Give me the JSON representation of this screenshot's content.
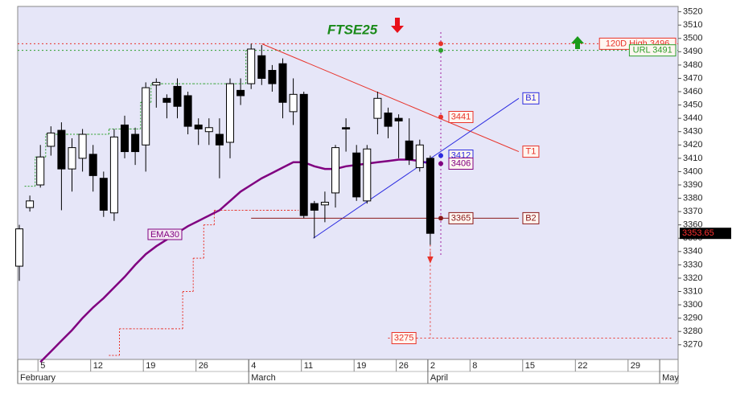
{
  "chart_data": {
    "type": "candlestick",
    "title": "FTSE25",
    "categories": [
      null,
      null,
      "5",
      null,
      null,
      null,
      null,
      "12",
      null,
      null,
      null,
      null,
      "19",
      null,
      null,
      null,
      null,
      "26",
      null,
      null,
      null,
      null,
      "4",
      null,
      null,
      null,
      null,
      "11",
      null,
      null,
      null,
      null,
      "19",
      null,
      null,
      null,
      "26",
      null,
      null,
      "2",
      null,
      null,
      null,
      "8",
      null,
      null,
      null,
      null,
      "15",
      null,
      null,
      null,
      null,
      "22",
      null,
      null,
      null,
      null,
      "29",
      null,
      null,
      null,
      null
    ],
    "months": [
      "February",
      null,
      null,
      null,
      null,
      null,
      null,
      null,
      null,
      null,
      null,
      null,
      null,
      null,
      null,
      null,
      null,
      null,
      null,
      null,
      null,
      null,
      "March",
      null,
      null,
      null,
      null,
      null,
      null,
      null,
      null,
      null,
      null,
      null,
      null,
      null,
      null,
      null,
      null,
      "April",
      null,
      null,
      null,
      null,
      null,
      null,
      null,
      null,
      null,
      null,
      null,
      null,
      null,
      null,
      null,
      null,
      null,
      null,
      null,
      null,
      null,
      "May",
      null
    ],
    "open": [
      3329,
      3373,
      3390,
      3419,
      3431,
      3402,
      3410,
      3413,
      3395,
      3369,
      3435,
      3428,
      3420,
      3465,
      3455,
      3464,
      3457,
      3435,
      3430,
      3428,
      3422,
      3461,
      3466,
      3487,
      3476,
      3481,
      3445,
      3458,
      3376,
      3375,
      3384,
      3433,
      3414,
      3378,
      3440,
      3444,
      3440,
      3423,
      3403,
      3410,
      null,
      null,
      null,
      null,
      null,
      null,
      null,
      null,
      null,
      null,
      null,
      null,
      null,
      null,
      null,
      null,
      null,
      null,
      null,
      null,
      null,
      null,
      null
    ],
    "high": [
      3360,
      3382,
      3420,
      3434,
      3437,
      3425,
      3432,
      3420,
      3400,
      3432,
      3442,
      3433,
      3467,
      3470,
      3458,
      3470,
      3460,
      3440,
      3440,
      3440,
      3470,
      3470,
      3496,
      3495,
      3480,
      3485,
      3470,
      3460,
      3378,
      3385,
      3420,
      3440,
      3420,
      3420,
      3460,
      3448,
      3443,
      3440,
      3424,
      3412,
      null,
      null,
      null,
      null,
      null,
      null,
      null,
      null,
      null,
      null,
      null,
      null,
      null,
      null,
      null,
      null,
      null,
      null,
      null,
      null,
      null,
      null,
      null
    ],
    "low": [
      3318,
      3370,
      3388,
      3412,
      3371,
      3385,
      3400,
      3385,
      3366,
      3363,
      3410,
      3405,
      3400,
      3448,
      3440,
      3440,
      3428,
      3420,
      3420,
      3395,
      3410,
      3450,
      3462,
      3465,
      3460,
      3440,
      3435,
      3365,
      3350,
      3362,
      3373,
      3415,
      3378,
      3376,
      3428,
      3425,
      3410,
      3405,
      3400,
      3345,
      null,
      null,
      null,
      null,
      null,
      null,
      null,
      null,
      null,
      null,
      null,
      null,
      null,
      null,
      null,
      null,
      null,
      null,
      null,
      null,
      null,
      null,
      null
    ],
    "close": [
      3357,
      3378,
      3411,
      3429,
      3402,
      3418,
      3428,
      3397,
      3371,
      3426,
      3415,
      3415,
      3463,
      3467,
      3452,
      3449,
      3434,
      3432,
      3433,
      3420,
      3466,
      3457,
      3492,
      3470,
      3466,
      3452,
      3458,
      3367,
      3371,
      3377,
      3418,
      3432,
      3381,
      3417,
      3455,
      3434,
      3438,
      3409,
      3420,
      3353.65,
      null,
      null,
      null,
      null,
      null,
      null,
      null,
      null,
      null,
      null,
      null,
      null,
      null,
      null,
      null,
      null,
      null,
      null,
      null,
      null,
      null,
      null,
      null
    ],
    "ema": {
      "name": "EMA30",
      "color": "#800080",
      "values": [
        null,
        null,
        3257,
        3265,
        3273,
        3281,
        3290,
        3298,
        3305,
        3313,
        3321,
        3330,
        3338,
        3344,
        3349,
        3354,
        3359,
        3363,
        3367,
        3371,
        3378,
        3385,
        3390,
        3395,
        3399,
        3403,
        3407,
        3407,
        3404,
        3402,
        3402,
        3404,
        3405,
        3406,
        3407,
        3408,
        3409,
        3409,
        3408,
        3406,
        null,
        null,
        null,
        null,
        null,
        null,
        null,
        null,
        null,
        null,
        null,
        null,
        null,
        null,
        null,
        null,
        null,
        null,
        null,
        null,
        null,
        null,
        null
      ]
    },
    "stops": [
      {
        "color": "#2ca02c",
        "values": [
          null,
          3389,
          3411,
          3428,
          3428,
          3428,
          3428,
          3428,
          3428,
          3432,
          3432,
          3432,
          3452,
          3466,
          3466,
          3466,
          3466,
          3466,
          3466,
          3466,
          3466,
          3466,
          3491,
          null,
          null,
          null,
          null,
          null,
          null,
          null,
          null,
          null,
          null,
          null,
          null,
          null,
          null,
          null,
          null,
          null,
          null,
          null,
          null,
          null,
          null,
          null,
          null,
          null,
          null,
          null,
          null,
          null,
          null,
          null,
          null,
          null,
          null,
          null,
          null,
          null,
          null,
          null,
          null
        ]
      },
      {
        "color": "#e8332a",
        "values": [
          null,
          null,
          null,
          null,
          null,
          null,
          null,
          null,
          null,
          3262,
          3282,
          3282,
          3282,
          3282,
          3282,
          3282,
          3310,
          3335,
          3360,
          3371,
          3371,
          3371,
          3371,
          3371,
          3371,
          3371,
          3371,
          null,
          null,
          null,
          null,
          null,
          null,
          null,
          null,
          null,
          null,
          null,
          null,
          null,
          null,
          null,
          null,
          null,
          null,
          null,
          null,
          null,
          null,
          null,
          null,
          null,
          null,
          null,
          null,
          null,
          null,
          null,
          null,
          null,
          null,
          null,
          null
        ]
      }
    ],
    "levels": [
      {
        "label": "120D High 3496",
        "value": 3496,
        "color": "#e8332a"
      },
      {
        "label": "URL 3491",
        "value": 3491,
        "color": "#2ca02c"
      }
    ],
    "trendlines": [
      {
        "label": "T1",
        "color": "#e8332a",
        "from": [
          23,
          3496
        ],
        "to": [
          47.4,
          3415
        ]
      },
      {
        "label": "B1",
        "color": "#2a2ae0",
        "from": [
          27.9,
          3350
        ],
        "to": [
          47.4,
          3455
        ]
      },
      {
        "label": "B2",
        "color": "#8b1a1a",
        "from": [
          22,
          3365
        ],
        "to": [
          47.4,
          3365
        ]
      }
    ],
    "projections": [
      {
        "value": 3441,
        "color": "#e8332a"
      },
      {
        "value": 3412,
        "color": "#2a2ae0"
      },
      {
        "value": 3406,
        "color": "#800080"
      },
      {
        "value": 3365,
        "color": "#8b1a1a"
      }
    ],
    "target": {
      "value": 3275,
      "color": "#e8332a"
    },
    "last_price": 3353.65,
    "ylim": [
      3259,
      3524
    ],
    "yticks": [
      3270,
      3280,
      3290,
      3300,
      3310,
      3320,
      3330,
      3340,
      3350,
      3360,
      3370,
      3380,
      3390,
      3400,
      3410,
      3420,
      3430,
      3440,
      3450,
      3460,
      3470,
      3480,
      3490,
      3500,
      3510,
      3520
    ]
  }
}
